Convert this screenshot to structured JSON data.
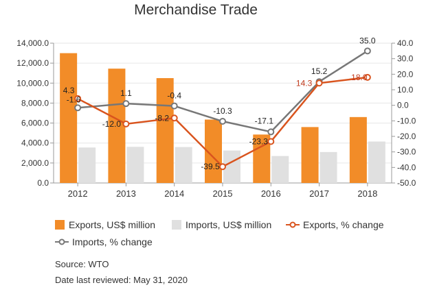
{
  "chart_data": {
    "type": "bar",
    "title": "Merchandise Trade",
    "categories": [
      "2012",
      "2013",
      "2014",
      "2015",
      "2016",
      "2017",
      "2018"
    ],
    "y_left": {
      "ticks": [
        "0.0",
        "2,000.0",
        "4,000.0",
        "6,000.0",
        "8,000.0",
        "10,000.0",
        "12,000.0",
        "14,000.0"
      ],
      "ylim": [
        0,
        14000
      ]
    },
    "y_right": {
      "ticks": [
        "-50.0",
        "-40.0",
        "-30.0",
        "-20.0",
        "-10.0",
        "0.0",
        "10.0",
        "20.0",
        "30.0",
        "40.0"
      ],
      "ylim": [
        -50,
        40
      ]
    },
    "grid": true,
    "legend_position": "bottom",
    "series": [
      {
        "name": "Exports, US$ million",
        "kind": "bar",
        "axis": "left",
        "color": "#f28c28",
        "values": [
          13000,
          11450,
          10500,
          6350,
          4850,
          5600,
          6600
        ]
      },
      {
        "name": "Imports, US$ million",
        "kind": "bar",
        "axis": "left",
        "color": "#e0e0e0",
        "values": [
          3550,
          3620,
          3600,
          3250,
          2700,
          3100,
          4150
        ]
      },
      {
        "name": "Exports, % change",
        "kind": "line",
        "axis": "right",
        "color": "#d9541e",
        "values": [
          4.3,
          -12.0,
          -8.2,
          -39.5,
          -23.3,
          14.3,
          18.0
        ],
        "labels": [
          "4.3",
          "-12.0",
          "-8.2",
          "-39.5",
          "-23.3",
          "14.3",
          "18.0"
        ]
      },
      {
        "name": "Imports, % change",
        "kind": "line",
        "axis": "right",
        "color": "#777777",
        "values": [
          -1.6,
          1.1,
          -0.4,
          -10.3,
          -17.1,
          15.2,
          35.0
        ],
        "labels": [
          "-1.6",
          "1.1",
          "-0.4",
          "-10.3",
          "-17.1",
          "15.2",
          "35.0"
        ]
      }
    ]
  },
  "footer": {
    "source": "Source: WTO",
    "reviewed": "Date last reviewed: May 31, 2020"
  }
}
